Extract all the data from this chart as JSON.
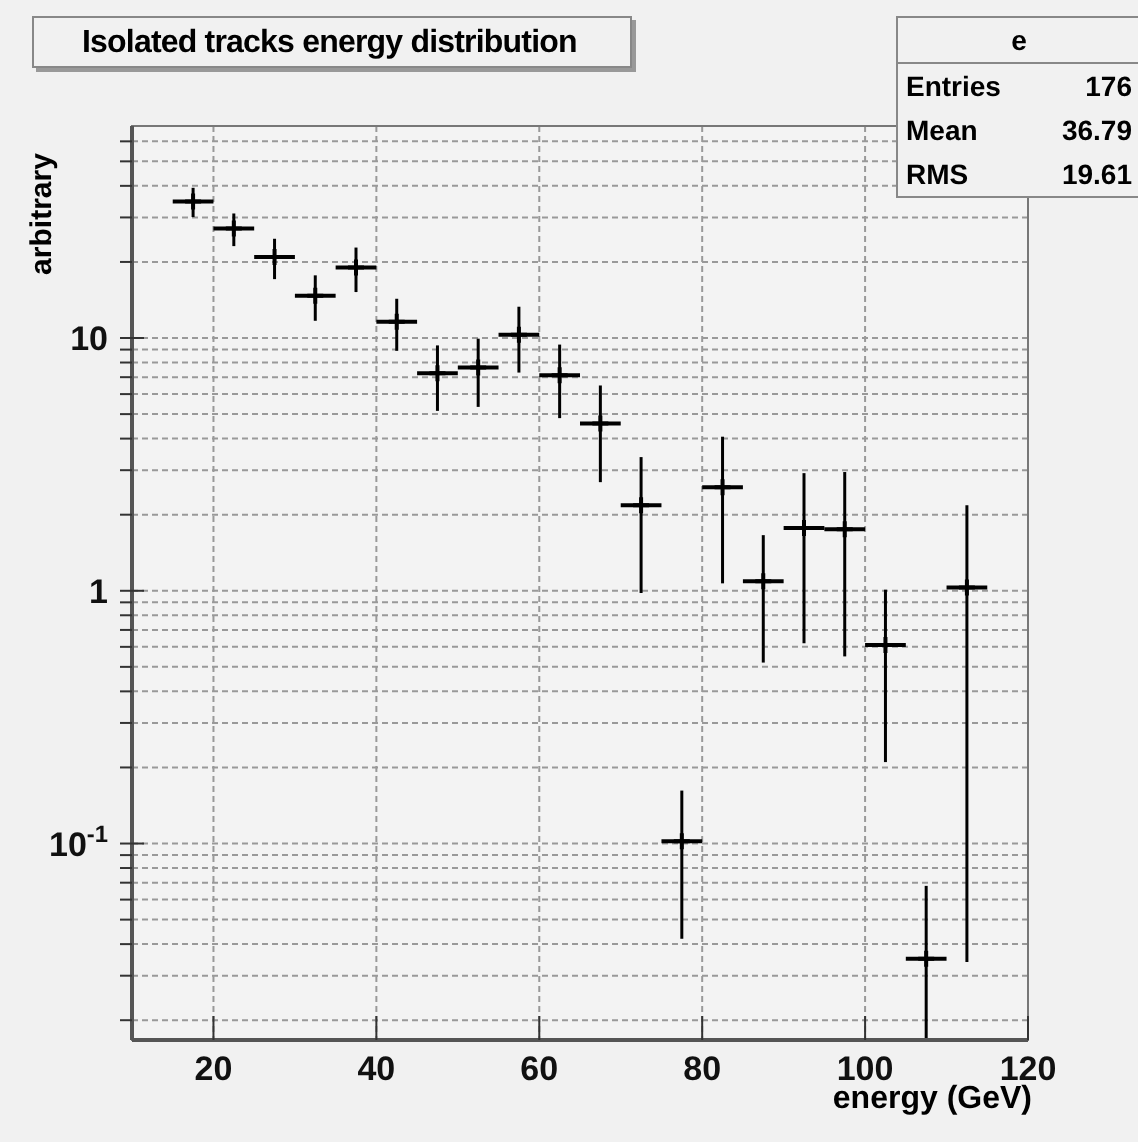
{
  "chart_data": {
    "type": "scatter",
    "title": "Isolated tracks energy distribution",
    "xlabel": "energy (GeV)",
    "ylabel": "arbitrary",
    "annotations": [
      "e",
      "Entries",
      "176",
      "Mean",
      "36.79",
      "RMS",
      "19.61"
    ],
    "x": [
      17.5,
      22.5,
      27.5,
      32.5,
      37.5,
      42.5,
      47.5,
      52.5,
      57.5,
      62.5,
      67.5,
      72.5,
      77.5,
      82.5,
      87.5,
      92.5,
      97.5,
      102.5,
      107.5,
      112.5
    ],
    "values": [
      34.7,
      27.1,
      20.9,
      14.7,
      19.0,
      11.6,
      7.25,
      7.64,
      10.3,
      7.12,
      4.59,
      2.18,
      0.102,
      2.57,
      1.09,
      1.77,
      1.75,
      0.61,
      0.035,
      1.03
    ],
    "errors": [
      4.6,
      4.0,
      3.8,
      3.0,
      3.8,
      2.7,
      2.1,
      2.3,
      3.0,
      2.3,
      1.9,
      1.2,
      0.06,
      1.5,
      0.57,
      1.15,
      1.2,
      0.4,
      [
        0.017,
        0.068
      ],
      [
        0.034,
        2.18
      ]
    ],
    "xerrors": [
      2.5,
      2.5,
      2.5,
      2.5,
      2.5,
      2.5,
      2.5,
      2.5,
      2.5,
      2.5,
      2.5,
      2.5,
      2.5,
      2.5,
      2.5,
      2.5,
      2.5,
      2.5,
      2.5,
      2.5
    ],
    "color": "#000000",
    "marker": "cross",
    "log": "y",
    "grid": true,
    "xlim": [
      10,
      120
    ],
    "xticks": [
      20,
      40,
      60,
      80,
      100,
      120
    ],
    "ylim": [
      0.0167,
      69
    ],
    "yticks": [
      {
        "value": 0.02,
        "label": null
      },
      {
        "value": 0.03,
        "label": null
      },
      {
        "value": 0.04,
        "label": null
      },
      {
        "value": 0.05,
        "label": null
      },
      {
        "value": 0.06,
        "label": null
      },
      {
        "value": 0.07,
        "label": null
      },
      {
        "value": 0.08,
        "label": null
      },
      {
        "value": 0.09,
        "label": null
      },
      {
        "value": 0.1,
        "label": "10$^{-1}$"
      },
      {
        "value": 0.2,
        "label": null
      },
      {
        "value": 0.3,
        "label": null
      },
      {
        "value": 0.4,
        "label": null
      },
      {
        "value": 0.5,
        "label": null
      },
      {
        "value": 0.6,
        "label": null
      },
      {
        "value": 0.7,
        "label": null
      },
      {
        "value": 0.8,
        "label": null
      },
      {
        "value": 0.9,
        "label": null
      },
      {
        "value": 1,
        "label": "1"
      },
      {
        "value": 2,
        "label": null
      },
      {
        "value": 3,
        "label": null
      },
      {
        "value": 4,
        "label": null
      },
      {
        "value": 5,
        "label": null
      },
      {
        "value": 6,
        "label": null
      },
      {
        "value": 7,
        "label": null
      },
      {
        "value": 8,
        "label": null
      },
      {
        "value": 9,
        "label": null
      },
      {
        "value": 10,
        "label": "10"
      },
      {
        "value": 20,
        "label": null
      },
      {
        "value": 30,
        "label": null
      },
      {
        "value": 40,
        "label": null
      },
      {
        "value": 50,
        "label": null
      },
      {
        "value": 60,
        "label": null
      }
    ]
  }
}
